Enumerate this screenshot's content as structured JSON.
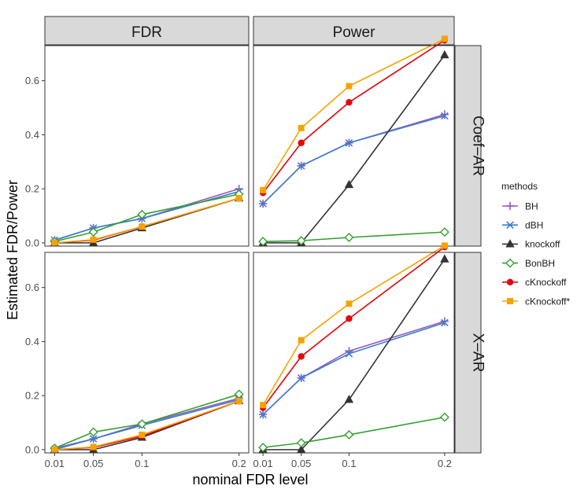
{
  "chart_data": {
    "type": "line",
    "xlabel": "nominal FDR level",
    "ylabel": "Estimated FDR/Power",
    "x": [
      0.01,
      0.05,
      0.1,
      0.2
    ],
    "x_tick_labels": [
      "0.01",
      "0.05",
      "0.1",
      "0.2"
    ],
    "y_tick_labels": [
      "0.0",
      "0.2",
      "0.4",
      "0.6"
    ],
    "y_ticks": [
      0,
      0.2,
      0.4,
      0.6
    ],
    "xlim": [
      0.0,
      0.21
    ],
    "ylim_rows": [
      [
        -0.012,
        0.73
      ],
      [
        -0.012,
        0.73
      ]
    ],
    "facet_columns": [
      "FDR",
      "Power"
    ],
    "facet_rows": [
      "Coef–AR",
      "X–AR"
    ],
    "legend_title": "methods",
    "legend_position": "right",
    "methods": [
      {
        "name": "BH",
        "color": "#9B59B6",
        "marker": "plus",
        "dash": "solid"
      },
      {
        "name": "dBH",
        "color": "#3A7DD0",
        "marker": "cross",
        "dash": "solid"
      },
      {
        "name": "knockoff",
        "color": "#333333",
        "marker": "triangle",
        "dash": "solid"
      },
      {
        "name": "BonBH",
        "color": "#33A02C",
        "marker": "diamond",
        "dash": "solid"
      },
      {
        "name": "cKnockoff",
        "color": "#E8000B",
        "marker": "circle",
        "dash": "solid"
      },
      {
        "name": "cKnockoff*",
        "color": "#F5A300",
        "marker": "square",
        "dash": "solid"
      }
    ],
    "panels": [
      {
        "row": "Coef–AR",
        "col": "FDR",
        "series": {
          "BH": [
            0.01,
            0.055,
            0.09,
            0.2
          ],
          "dBH": [
            0.01,
            0.055,
            0.09,
            0.19
          ],
          "knockoff": [
            0.0,
            0.0,
            0.055,
            0.165
          ],
          "BonBH": [
            0.005,
            0.04,
            0.105,
            0.18
          ],
          "cKnockoff": [
            0.0,
            0.01,
            0.06,
            0.165
          ],
          "cKnockoff*": [
            0.0,
            0.012,
            0.06,
            0.165
          ]
        }
      },
      {
        "row": "Coef–AR",
        "col": "Power",
        "series": {
          "BH": [
            0.145,
            0.285,
            0.37,
            0.475
          ],
          "dBH": [
            0.145,
            0.285,
            0.37,
            0.47
          ],
          "knockoff": [
            0.0,
            0.0,
            0.215,
            0.695
          ],
          "BonBH": [
            0.005,
            0.008,
            0.02,
            0.04
          ],
          "cKnockoff": [
            0.185,
            0.37,
            0.52,
            0.75
          ],
          "cKnockoff*": [
            0.195,
            0.425,
            0.58,
            0.755
          ]
        }
      },
      {
        "row": "X–AR",
        "col": "FDR",
        "series": {
          "BH": [
            0.005,
            0.04,
            0.095,
            0.19
          ],
          "dBH": [
            0.0,
            0.04,
            0.09,
            0.185
          ],
          "knockoff": [
            0.0,
            0.0,
            0.045,
            0.18
          ],
          "BonBH": [
            0.005,
            0.065,
            0.095,
            0.205
          ],
          "cKnockoff": [
            0.0,
            0.008,
            0.05,
            0.18
          ],
          "cKnockoff*": [
            0.0,
            0.01,
            0.055,
            0.18
          ]
        }
      },
      {
        "row": "X–AR",
        "col": "Power",
        "series": {
          "BH": [
            0.13,
            0.265,
            0.365,
            0.475
          ],
          "dBH": [
            0.13,
            0.265,
            0.355,
            0.47
          ],
          "knockoff": [
            0.0,
            0.0,
            0.185,
            0.705
          ],
          "BonBH": [
            0.008,
            0.025,
            0.055,
            0.12
          ],
          "cKnockoff": [
            0.155,
            0.345,
            0.485,
            0.75
          ],
          "cKnockoff*": [
            0.165,
            0.405,
            0.54,
            0.755
          ]
        }
      }
    ]
  }
}
